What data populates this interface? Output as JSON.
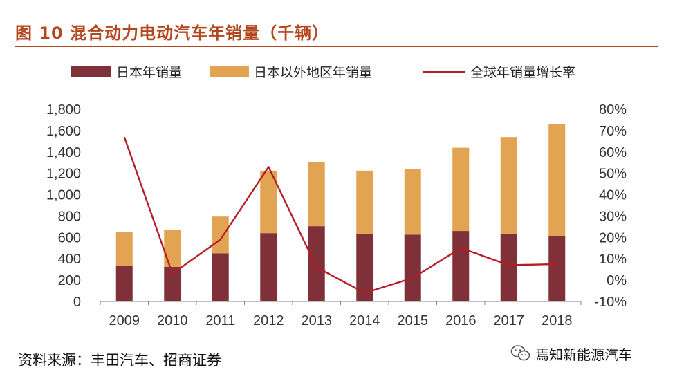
{
  "title": "图 10 混合动力电动汽车年销量（千辆）",
  "source": "资料来源：丰田汽车、招商证券",
  "watermark": "焉知新能源汽车",
  "colors": {
    "title": "#b4461e",
    "japan_bar": "#7f3038",
    "overseas_bar": "#e2a352",
    "growth_line": "#b51d24",
    "axis": "#808080",
    "tick_text": "#333333"
  },
  "watermark_icon": "wechat-icon",
  "chart_data": {
    "type": "bar",
    "stacked": true,
    "categories": [
      "2009",
      "2010",
      "2011",
      "2012",
      "2013",
      "2014",
      "2015",
      "2016",
      "2017",
      "2018"
    ],
    "series": [
      {
        "name": "日本年销量",
        "type": "bar",
        "axis": "left",
        "values": [
          335,
          325,
          450,
          640,
          705,
          635,
          625,
          660,
          635,
          615
        ]
      },
      {
        "name": "日本以外地区年销量",
        "type": "bar",
        "axis": "left",
        "values": [
          315,
          345,
          345,
          585,
          600,
          590,
          615,
          780,
          905,
          1045
        ]
      },
      {
        "name": "全球年销量增长率",
        "type": "line",
        "axis": "right",
        "values": [
          67,
          3,
          19,
          53,
          6,
          -6,
          1,
          15,
          7,
          7.5
        ]
      }
    ],
    "ylim": [
      0,
      1800
    ],
    "y_ticks": [
      "0",
      "200",
      "400",
      "600",
      "800",
      "1,000",
      "1,200",
      "1,400",
      "1,600",
      "1,800"
    ],
    "y2lim": [
      -10,
      80
    ],
    "y2_ticks": [
      "-10%",
      "0%",
      "10%",
      "20%",
      "30%",
      "40%",
      "50%",
      "60%",
      "70%",
      "80%"
    ],
    "legend_position": "top",
    "grid": false
  }
}
